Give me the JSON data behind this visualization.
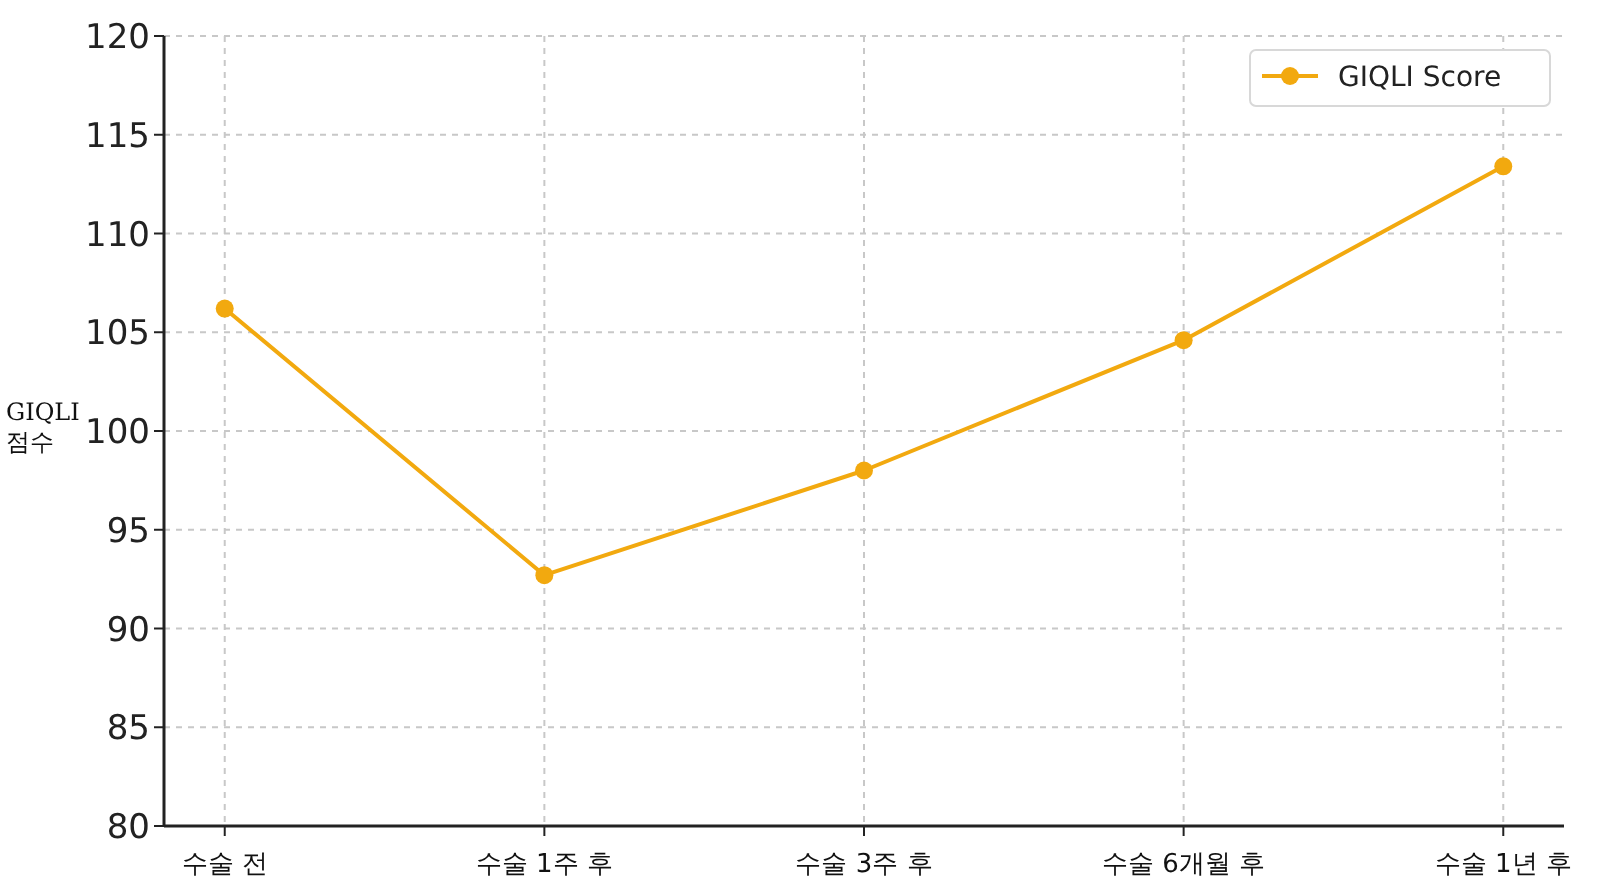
{
  "chart_data": {
    "type": "line",
    "ylabel": "GIQLI 점수",
    "categories": [
      "수술 전",
      "수술 1주 후",
      "수술 3주 후",
      "수술 6개월 후",
      "수술 1년 후"
    ],
    "series": [
      {
        "name": "GIQLI Score",
        "color": "#f2a90f",
        "values": [
          106.2,
          92.7,
          98.0,
          104.6,
          113.4
        ]
      }
    ],
    "ylim": [
      80,
      120
    ],
    "yticks": [
      80,
      85,
      90,
      95,
      100,
      105,
      110,
      115,
      120
    ],
    "grid": true,
    "legend": "top right",
    "marker": "circle",
    "line_style": "solid"
  }
}
